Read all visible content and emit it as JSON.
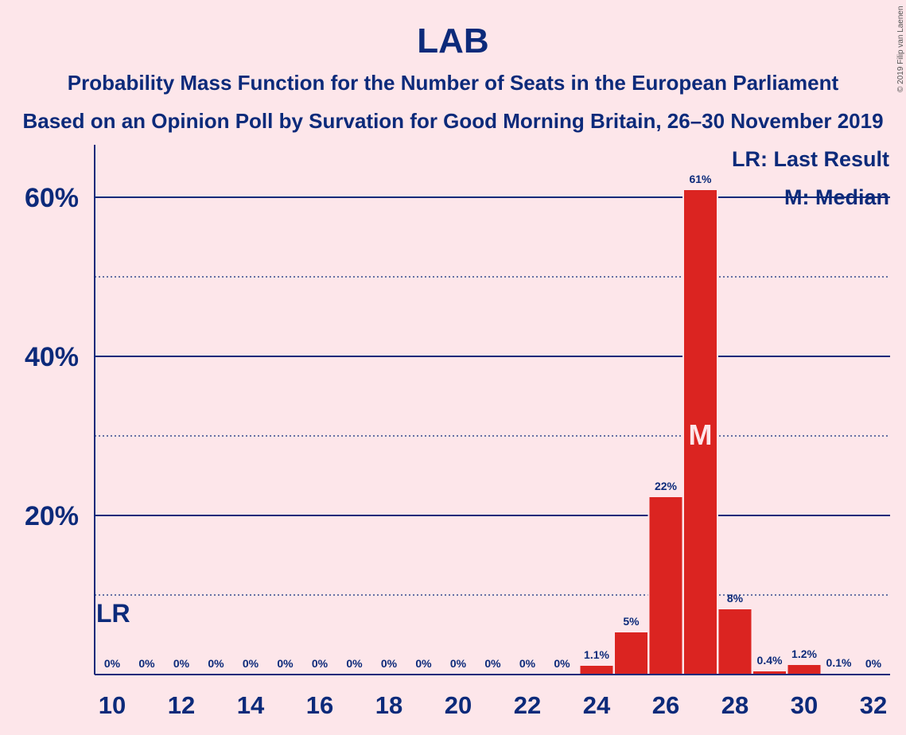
{
  "chart_data": {
    "type": "bar",
    "title": "LAB",
    "subtitle": "Probability Mass Function for the Number of Seats in the European Parliament",
    "subtitle2": "Based on an Opinion Poll by Survation for Good Morning Britain, 26–30 November 2019",
    "copyright": "© 2019 Filip van Laenen",
    "categories": [
      10,
      11,
      12,
      13,
      14,
      15,
      16,
      17,
      18,
      19,
      20,
      21,
      22,
      23,
      24,
      25,
      26,
      27,
      28,
      29,
      30,
      31,
      32
    ],
    "values": [
      0,
      0,
      0,
      0,
      0,
      0,
      0,
      0,
      0,
      0,
      0,
      0,
      0,
      0,
      1.1,
      5.3,
      22.3,
      60.9,
      8.2,
      0.4,
      1.2,
      0.1,
      0
    ],
    "value_labels": [
      "0%",
      "0%",
      "0%",
      "0%",
      "0%",
      "0%",
      "0%",
      "0%",
      "0%",
      "0%",
      "0%",
      "0%",
      "0%",
      "0%",
      "1.1%",
      "5%",
      "22%",
      "61%",
      "8%",
      "0.4%",
      "1.2%",
      "0.1%",
      "0%"
    ],
    "x_tick_labels": [
      "10",
      "12",
      "14",
      "16",
      "18",
      "20",
      "22",
      "24",
      "26",
      "28",
      "30",
      "32"
    ],
    "y_tick_labels": [
      "20%",
      "40%",
      "60%"
    ],
    "ylim": [
      0,
      66
    ],
    "last_result_seat": 10,
    "median_seat": 27,
    "last_result_marker": "LR",
    "median_marker": "M",
    "legend": [
      "LR: Last Result",
      "M: Median"
    ],
    "legend_position": "top-right",
    "bar_color": "#db2421",
    "text_color": "#0c2a7a",
    "background_color": "#fde6ea"
  }
}
